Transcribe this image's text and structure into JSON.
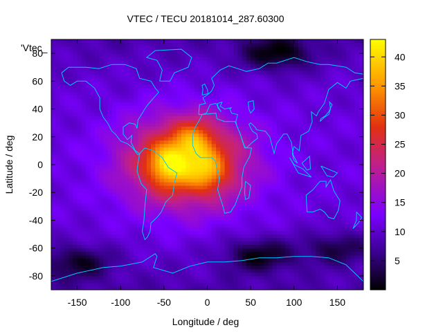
{
  "chart_data": {
    "type": "heatmap",
    "title": "VTEC / TECU 20181014_287.60300",
    "xlabel": "Longitude / deg",
    "ylabel": "Latitude / deg",
    "xlim": [
      -180,
      180
    ],
    "ylim": [
      -90,
      90
    ],
    "xticks": [
      "-150",
      "-100",
      "-50",
      "0",
      "50",
      "100",
      "150"
    ],
    "yticks": [
      "80",
      "60",
      "40",
      "20",
      "0",
      "-20",
      "-40",
      "-60",
      "-80"
    ],
    "colorbar_ticks": [
      "40",
      "35",
      "30",
      "25",
      "20",
      "15",
      "10",
      "5"
    ],
    "colorbar_range": [
      0,
      43
    ],
    "legend_label": "'Vtec_",
    "colormap": "gnuplot-pm3d (black-purple-red-orange-yellow)",
    "coastline_color": "#00c8ff",
    "field_model": {
      "background_tecu": 11,
      "peaks": [
        {
          "lon": -45,
          "lat": 0,
          "value": 43
        },
        {
          "lon": -15,
          "lat": 18,
          "value": 40
        },
        {
          "lon": 0,
          "lat": -5,
          "value": 39
        }
      ],
      "low_regions": [
        {
          "lon": 80,
          "lat": 80,
          "value": 2
        },
        {
          "lon": 60,
          "lat": -65,
          "value": 2
        },
        {
          "lon": -150,
          "lat": -70,
          "value": 3
        },
        {
          "lon": 150,
          "lat": -60,
          "value": 4
        }
      ]
    }
  }
}
